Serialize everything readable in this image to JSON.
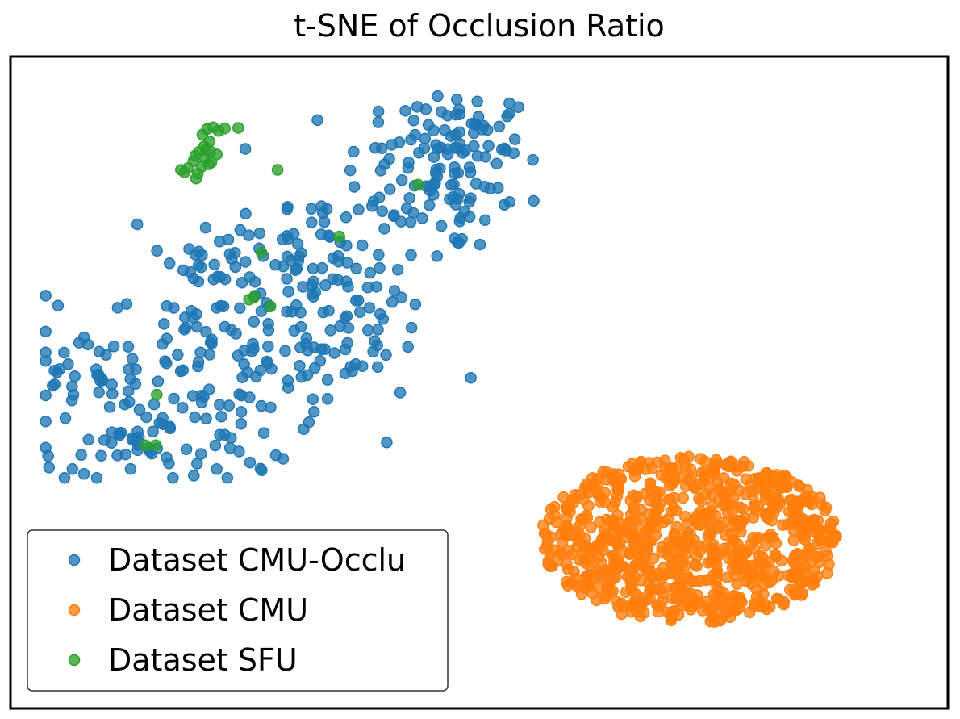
{
  "chart_data": {
    "type": "scatter",
    "title": "t-SNE of Occlusion Ratio",
    "xlabel": "",
    "ylabel": "",
    "axes_ticks": "hidden",
    "grid": false,
    "xlim": [
      0,
      100
    ],
    "ylim": [
      0,
      100
    ],
    "legend_position": "lower-left",
    "series": [
      {
        "name": "Dataset CMU-Occlu",
        "color": "#1f77b4",
        "count": 470,
        "clusters": [
          {
            "cx": 46,
            "cy": 85,
            "sx": 5.5,
            "sy": 7,
            "n": 110
          },
          {
            "cx": 29,
            "cy": 70,
            "sx": 7,
            "sy": 6,
            "n": 90
          },
          {
            "cx": 17,
            "cy": 55,
            "sx": 8,
            "sy": 8,
            "n": 110
          },
          {
            "cx": 15,
            "cy": 42,
            "sx": 7,
            "sy": 4.5,
            "n": 70
          },
          {
            "cx": 35,
            "cy": 58,
            "sx": 5,
            "sy": 6,
            "n": 60
          },
          {
            "cx": 5,
            "cy": 47,
            "sx": 1.5,
            "sy": 4,
            "n": 10
          },
          {
            "cx": 49,
            "cy": 91,
            "sx": 4,
            "sy": 2.5,
            "n": 20
          }
        ],
        "extra_points": [
          {
            "x": 63.5,
            "y": 19.5
          }
        ]
      },
      {
        "name": "Dataset CMU",
        "color": "#ff7f0e",
        "count": 820,
        "clusters": [
          {
            "cx": 73.5,
            "cy": 25,
            "sx": 10.5,
            "sy": 8.5,
            "n": 820
          }
        ],
        "shape": "ellipse"
      },
      {
        "name": "Dataset SFU",
        "color": "#2ca02c",
        "count": 33,
        "points": [
          {
            "x": 19.5,
            "y": 91.5
          },
          {
            "x": 20.2,
            "y": 91.8
          },
          {
            "x": 20.8,
            "y": 91.2
          },
          {
            "x": 19.0,
            "y": 90.6
          },
          {
            "x": 21.5,
            "y": 91.6
          },
          {
            "x": 23.0,
            "y": 91.7
          },
          {
            "x": 19.8,
            "y": 89.5
          },
          {
            "x": 19.2,
            "y": 88.7
          },
          {
            "x": 18.6,
            "y": 87.8
          },
          {
            "x": 19.9,
            "y": 87.9
          },
          {
            "x": 18.2,
            "y": 87.2
          },
          {
            "x": 20.6,
            "y": 87.4
          },
          {
            "x": 19.3,
            "y": 86.8
          },
          {
            "x": 18.0,
            "y": 86.3
          },
          {
            "x": 20.0,
            "y": 86.1
          },
          {
            "x": 17.4,
            "y": 85.2
          },
          {
            "x": 18.9,
            "y": 85.4
          },
          {
            "x": 17.0,
            "y": 84.5
          },
          {
            "x": 18.3,
            "y": 83.5
          },
          {
            "x": 19.7,
            "y": 85.8
          },
          {
            "x": 16.6,
            "y": 84.9
          },
          {
            "x": 18.5,
            "y": 84.3
          },
          {
            "x": 19.4,
            "y": 88.1
          },
          {
            "x": 27.4,
            "y": 84.9
          },
          {
            "x": 43.1,
            "y": 82.5
          },
          {
            "x": 34.3,
            "y": 74.1
          },
          {
            "x": 25.6,
            "y": 71.5
          },
          {
            "x": 24.2,
            "y": 63.9
          },
          {
            "x": 26.6,
            "y": 62.8
          },
          {
            "x": 13.9,
            "y": 48.5
          },
          {
            "x": 12.6,
            "y": 40.3
          },
          {
            "x": 13.8,
            "y": 40.3
          },
          {
            "x": 24.8,
            "y": 64.3
          }
        ]
      }
    ]
  }
}
